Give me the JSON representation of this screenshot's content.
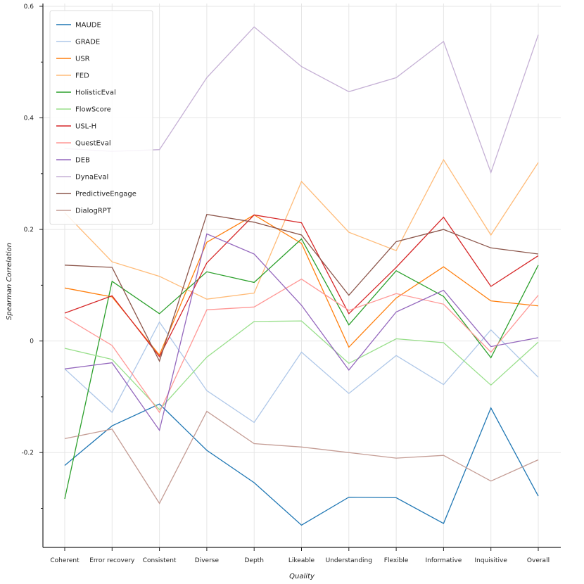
{
  "chart_data": {
    "type": "line",
    "title": "",
    "xlabel": "Quality",
    "ylabel": "Spearman Correlation",
    "ylim": [
      -0.37,
      0.605
    ],
    "yticks": [
      -0.2,
      0,
      0.2,
      0.4,
      0.6
    ],
    "ytick_labels": [
      "-0.2",
      "0",
      "0.2",
      "0.4",
      "0.6"
    ],
    "grid": true,
    "legend_position": "top-left",
    "categories": [
      "Coherent",
      "Error recovery",
      "Consistent",
      "Diverse",
      "Depth",
      "Likeable",
      "Understanding",
      "Flexible",
      "Informative",
      "Inquisitive",
      "Overall"
    ],
    "series": [
      {
        "name": "MAUDE",
        "color": "#1f77b4",
        "values": [
          -0.223,
          -0.152,
          -0.113,
          -0.196,
          -0.254,
          -0.33,
          -0.28,
          -0.281,
          -0.327,
          -0.12,
          -0.278
        ]
      },
      {
        "name": "GRADE",
        "color": "#aec7e8",
        "values": [
          -0.05,
          -0.128,
          0.034,
          -0.089,
          -0.146,
          -0.02,
          -0.094,
          -0.026,
          -0.078,
          0.02,
          -0.065
        ]
      },
      {
        "name": "USR",
        "color": "#ff7f0e",
        "values": [
          0.095,
          0.079,
          -0.025,
          0.177,
          0.226,
          0.175,
          -0.011,
          0.077,
          0.133,
          0.072,
          0.063
        ]
      },
      {
        "name": "FED",
        "color": "#ffbb78",
        "values": [
          0.23,
          0.142,
          0.116,
          0.075,
          0.086,
          0.286,
          0.195,
          0.162,
          0.325,
          0.19,
          0.32
        ]
      },
      {
        "name": "HolisticEval",
        "color": "#2ca02c",
        "values": [
          -0.283,
          0.107,
          0.049,
          0.124,
          0.105,
          0.183,
          0.029,
          0.126,
          0.08,
          -0.03,
          0.136
        ]
      },
      {
        "name": "FlowScore",
        "color": "#98df8a",
        "values": [
          -0.013,
          -0.033,
          -0.123,
          -0.029,
          0.035,
          0.036,
          -0.04,
          0.004,
          -0.003,
          -0.079,
          -0.002
        ]
      },
      {
        "name": "USL-H",
        "color": "#d62728",
        "values": [
          0.05,
          0.081,
          -0.028,
          0.14,
          0.226,
          0.212,
          0.049,
          0.132,
          0.222,
          0.098,
          0.153
        ]
      },
      {
        "name": "QuestEval",
        "color": "#ff9896",
        "values": [
          0.043,
          -0.008,
          -0.128,
          0.056,
          0.061,
          0.111,
          0.055,
          0.085,
          0.066,
          -0.02,
          0.082
        ]
      },
      {
        "name": "DEB",
        "color": "#9467bd",
        "values": [
          -0.05,
          -0.039,
          -0.16,
          0.192,
          0.156,
          0.064,
          -0.052,
          0.052,
          0.091,
          -0.01,
          0.006
        ]
      },
      {
        "name": "DynaEval",
        "color": "#c5b0d5",
        "values": [
          0.345,
          0.34,
          0.343,
          0.472,
          0.563,
          0.492,
          0.447,
          0.472,
          0.537,
          0.302,
          0.549
        ]
      },
      {
        "name": "PredictiveEngage",
        "color": "#8c564b",
        "values": [
          0.136,
          0.132,
          -0.036,
          0.227,
          0.213,
          0.19,
          0.082,
          0.178,
          0.2,
          0.167,
          0.156
        ]
      },
      {
        "name": "DialogRPT",
        "color": "#c49c94",
        "values": [
          -0.175,
          -0.158,
          -0.291,
          -0.126,
          -0.184,
          -0.19,
          -0.2,
          -0.21,
          -0.205,
          -0.251,
          -0.213
        ]
      }
    ]
  }
}
